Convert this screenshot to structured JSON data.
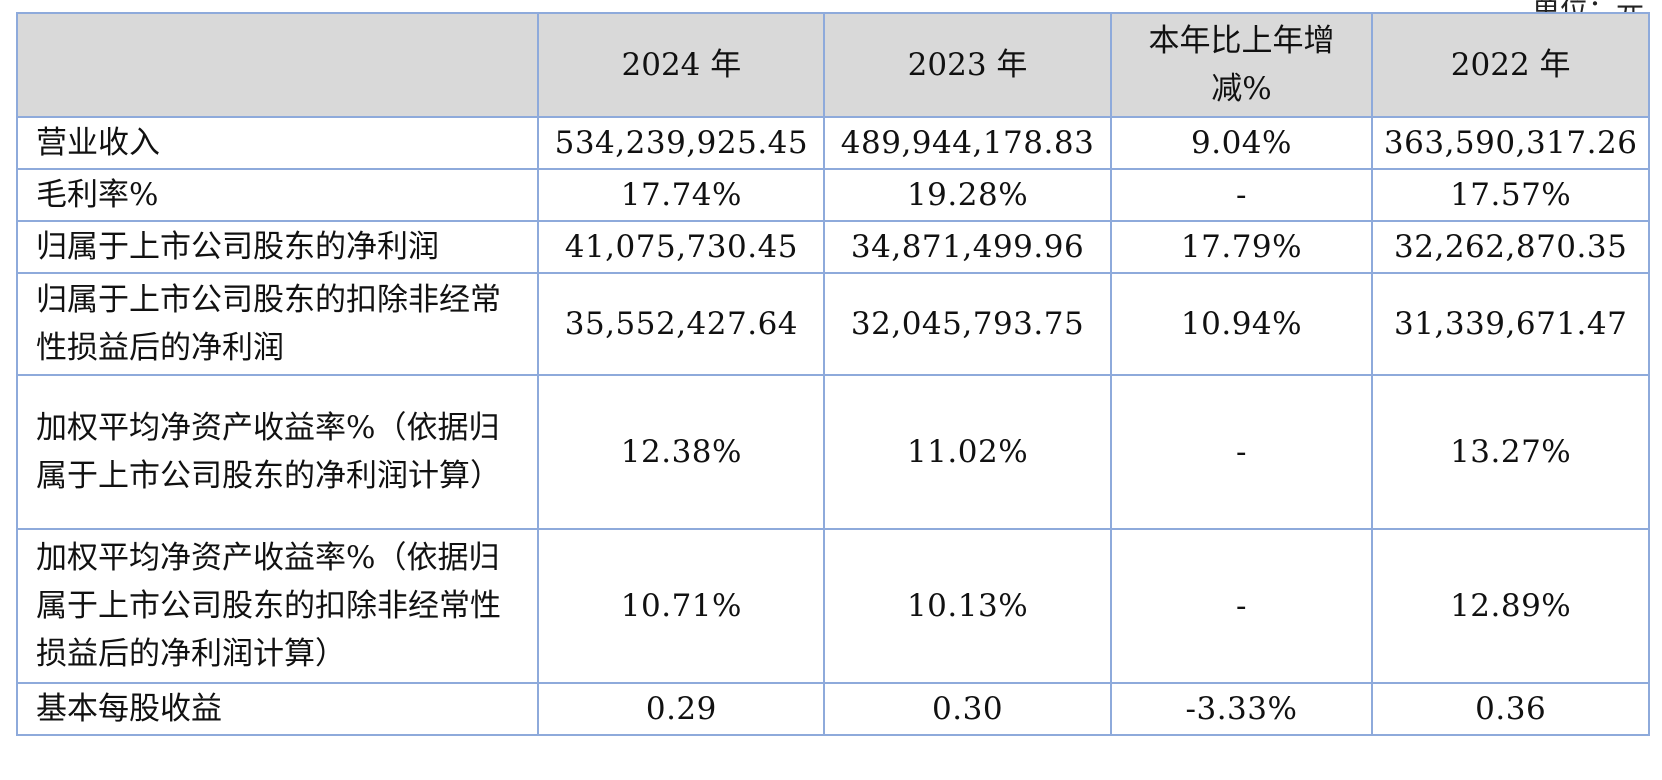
{
  "top_fragment": "单位：元",
  "table": {
    "headers": [
      "",
      "2024 年",
      "2023 年",
      "本年比上年增减%",
      "2022 年"
    ],
    "rows": [
      [
        "营业收入",
        "534,239,925.45",
        "489,944,178.83",
        "9.04%",
        "363,590,317.26"
      ],
      [
        "毛利率%",
        "17.74%",
        "19.28%",
        "-",
        "17.57%"
      ],
      [
        "归属于上市公司股东的净利润",
        "41,075,730.45",
        "34,871,499.96",
        "17.79%",
        "32,262,870.35"
      ],
      [
        "归属于上市公司股东的扣除非经常性损益后的净利润",
        "35,552,427.64",
        "32,045,793.75",
        "10.94%",
        "31,339,671.47"
      ],
      [
        "加权平均净资产收益率%（依据归属于上市公司股东的净利润计算）",
        "12.38%",
        "11.02%",
        "-",
        "13.27%"
      ],
      [
        "加权平均净资产收益率%（依据归属于上市公司股东的扣除非经常性损益后的净利润计算）",
        "10.71%",
        "10.13%",
        "-",
        "12.89%"
      ],
      [
        "基本每股收益",
        "0.29",
        "0.30",
        "-3.33%",
        "0.36"
      ]
    ]
  }
}
